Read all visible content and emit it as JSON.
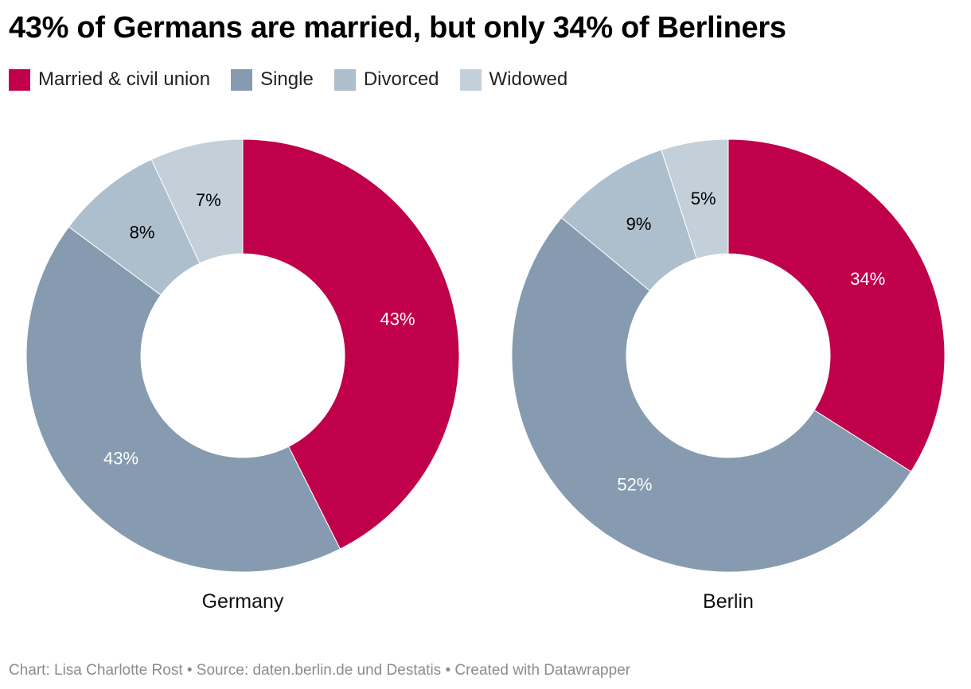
{
  "title": "43% of Germans are married, but only 34% of Berliners",
  "legend": [
    {
      "label": "Married & civil union",
      "color": "#c0004b"
    },
    {
      "label": "Single",
      "color": "#869bb0"
    },
    {
      "label": "Divorced",
      "color": "#adbecc"
    },
    {
      "label": "Widowed",
      "color": "#c3d0da"
    }
  ],
  "chart_data": [
    {
      "type": "pie",
      "donut": true,
      "name": "Germany",
      "categories": [
        "Married & civil union",
        "Single",
        "Divorced",
        "Widowed"
      ],
      "values": [
        43,
        43,
        8,
        7
      ],
      "labels": [
        "43%",
        "43%",
        "8%",
        "7%"
      ],
      "colors": [
        "#c0004b",
        "#869bb0",
        "#adbecc",
        "#c3d0da"
      ],
      "label_colors": [
        "#ffffff",
        "#ffffff",
        "#000000",
        "#000000"
      ]
    },
    {
      "type": "pie",
      "donut": true,
      "name": "Berlin",
      "categories": [
        "Married & civil union",
        "Single",
        "Divorced",
        "Widowed"
      ],
      "values": [
        34,
        52,
        9,
        5
      ],
      "labels": [
        "34%",
        "52%",
        "9%",
        "5%"
      ],
      "colors": [
        "#c0004b",
        "#869bb0",
        "#adbecc",
        "#c3d0da"
      ],
      "label_colors": [
        "#ffffff",
        "#ffffff",
        "#000000",
        "#000000"
      ]
    }
  ],
  "footer": "Chart: Lisa Charlotte Rost • Source: daten.berlin.de und Destatis • Created with Datawrapper"
}
